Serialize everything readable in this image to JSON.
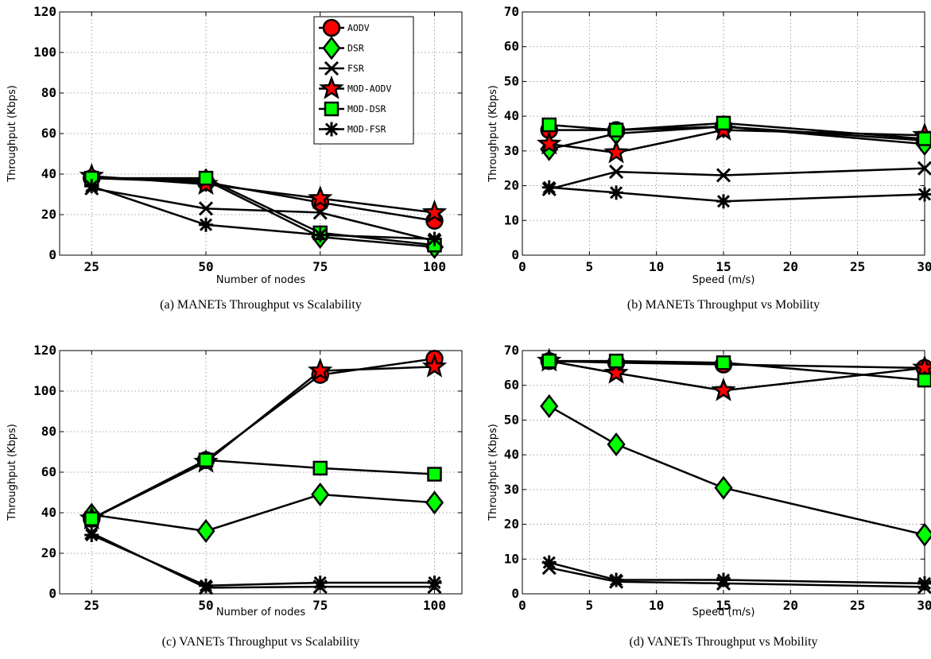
{
  "chart_data": [
    {
      "type": "line",
      "caption": "(a) MANETs Throughput vs Scalability",
      "xlabel": "Number of nodes",
      "ylabel": "Throughput (Kbps)",
      "xlim": [
        18,
        106
      ],
      "ylim": [
        0,
        120
      ],
      "xticks": [
        25,
        50,
        75,
        100
      ],
      "yticks": [
        0,
        20,
        40,
        60,
        80,
        100,
        120
      ],
      "grid": true,
      "legend": "top-right",
      "x": [
        25,
        50,
        75,
        100
      ],
      "series": [
        {
          "name": "AODV",
          "values": [
            38,
            36,
            26,
            17
          ]
        },
        {
          "name": "DSR",
          "values": [
            38,
            37,
            9,
            4
          ]
        },
        {
          "name": "FSR",
          "values": [
            33,
            23,
            21,
            7
          ]
        },
        {
          "name": "MOD-AODV",
          "values": [
            39,
            35,
            28,
            21
          ]
        },
        {
          "name": "MOD-DSR",
          "values": [
            38,
            38,
            11,
            5
          ]
        },
        {
          "name": "MOD-FSR",
          "values": [
            34,
            15,
            10,
            8
          ]
        }
      ]
    },
    {
      "type": "line",
      "caption": "(b) MANETs Throughput vs Mobility",
      "xlabel": "Speed (m/s)",
      "ylabel": "Throughput (Kbps)",
      "xlim": [
        0,
        30
      ],
      "ylim": [
        0,
        70
      ],
      "xticks": [
        0,
        5,
        10,
        15,
        20,
        25,
        30
      ],
      "yticks": [
        0,
        10,
        20,
        30,
        40,
        50,
        60,
        70
      ],
      "grid": true,
      "x": [
        2,
        7,
        15,
        30
      ],
      "series": [
        {
          "name": "AODV",
          "values": [
            36,
            36,
            37,
            33
          ]
        },
        {
          "name": "DSR",
          "values": [
            30.5,
            35,
            37,
            32
          ]
        },
        {
          "name": "FSR",
          "values": [
            19,
            24,
            23,
            25
          ]
        },
        {
          "name": "MOD-AODV",
          "values": [
            32,
            29.5,
            36,
            34.5
          ]
        },
        {
          "name": "MOD-DSR",
          "values": [
            37.5,
            36,
            38,
            33.5
          ]
        },
        {
          "name": "MOD-FSR",
          "values": [
            19.5,
            18,
            15.5,
            17.5
          ]
        }
      ]
    },
    {
      "type": "line",
      "caption": "(c) VANETs Throughput vs Scalability",
      "xlabel": "Number of nodes",
      "ylabel": "Throughput (Kbps)",
      "xlim": [
        18,
        106
      ],
      "ylim": [
        0,
        120
      ],
      "xticks": [
        25,
        50,
        75,
        100
      ],
      "yticks": [
        0,
        20,
        40,
        60,
        80,
        100,
        120
      ],
      "grid": true,
      "x": [
        25,
        50,
        75,
        100
      ],
      "series": [
        {
          "name": "AODV",
          "values": [
            37,
            66,
            108,
            116
          ]
        },
        {
          "name": "DSR",
          "values": [
            39,
            31,
            49,
            45
          ]
        },
        {
          "name": "FSR",
          "values": [
            30,
            3,
            3.5,
            3.5
          ]
        },
        {
          "name": "MOD-AODV",
          "values": [
            37,
            65,
            110,
            112
          ]
        },
        {
          "name": "MOD-DSR",
          "values": [
            37,
            66,
            62,
            59
          ]
        },
        {
          "name": "MOD-FSR",
          "values": [
            29,
            4,
            5.5,
            5.5
          ]
        }
      ]
    },
    {
      "type": "line",
      "caption": "(d) VANETs Throughput vs Mobility",
      "xlabel": "Speed (m/s)",
      "ylabel": "Throughput (Kbps)",
      "xlim": [
        0,
        30
      ],
      "ylim": [
        0,
        70
      ],
      "xticks": [
        0,
        5,
        10,
        15,
        20,
        25,
        30
      ],
      "yticks": [
        0,
        10,
        20,
        30,
        40,
        50,
        60,
        70
      ],
      "grid": true,
      "x": [
        2,
        7,
        15,
        30
      ],
      "series": [
        {
          "name": "AODV",
          "values": [
            67,
            66.5,
            66,
            65
          ]
        },
        {
          "name": "DSR",
          "values": [
            54,
            43,
            30.5,
            17
          ]
        },
        {
          "name": "FSR",
          "values": [
            7.5,
            3.5,
            3,
            2
          ]
        },
        {
          "name": "MOD-AODV",
          "values": [
            67,
            63.5,
            58.5,
            65
          ]
        },
        {
          "name": "MOD-DSR",
          "values": [
            67,
            67,
            66.5,
            61.5
          ]
        },
        {
          "name": "MOD-FSR",
          "values": [
            9,
            4,
            4,
            3
          ]
        }
      ]
    }
  ],
  "legend_items": [
    "AODV",
    "DSR",
    "FSR",
    "MOD-AODV",
    "MOD-DSR",
    "MOD-FSR"
  ],
  "colors": {
    "aodv_fill": "#ff0000",
    "dsr_fill": "#00ff00",
    "mod_dsr_fill": "#00ff00",
    "mod_aodv_star": "#ff0000",
    "line": "#000000",
    "grid": "#888888"
  }
}
